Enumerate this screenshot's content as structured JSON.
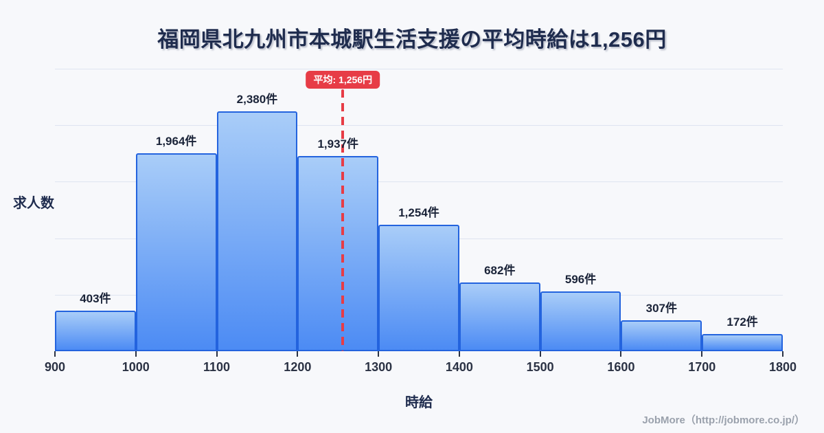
{
  "page": {
    "title": "福岡県北九州市本城駅生活支援の平均時給は1,256円",
    "footer": "JobMore（http://jobmore.co.jp/）",
    "background": "#f7f8fb"
  },
  "chart_data": {
    "type": "bar",
    "subtype": "histogram",
    "title": "福岡県北九州市本城駅生活支援の平均時給は1,256円",
    "xlabel": "時給",
    "ylabel": "求人数",
    "bin_edges": [
      900,
      1000,
      1100,
      1200,
      1300,
      1400,
      1500,
      1600,
      1700,
      1800
    ],
    "x_tick_labels": [
      "900",
      "1000",
      "1100",
      "1200",
      "1300",
      "1400",
      "1500",
      "1600",
      "1700",
      "1800"
    ],
    "values": [
      403,
      1964,
      2380,
      1937,
      1254,
      682,
      596,
      307,
      172
    ],
    "value_labels": [
      "403件",
      "1,964件",
      "2,380件",
      "1,937件",
      "1,254件",
      "682件",
      "596件",
      "307件",
      "172件"
    ],
    "average": 1256,
    "average_label": "平均: 1,256円",
    "ylim": [
      0,
      2800
    ],
    "grid": true,
    "gridline_count": 5,
    "legend": "none",
    "colors": {
      "background": "#f7f8fb",
      "bar_fill_top": "#a9cdf8",
      "bar_fill_bottom": "#4c8bf4",
      "bar_border": "#2363de",
      "average_line": "#e73c46",
      "gridline": "#dee4f0",
      "title_text": "#1f2c4e",
      "tick_text": "#2b3244",
      "footer_text": "#9aa1ac"
    }
  }
}
